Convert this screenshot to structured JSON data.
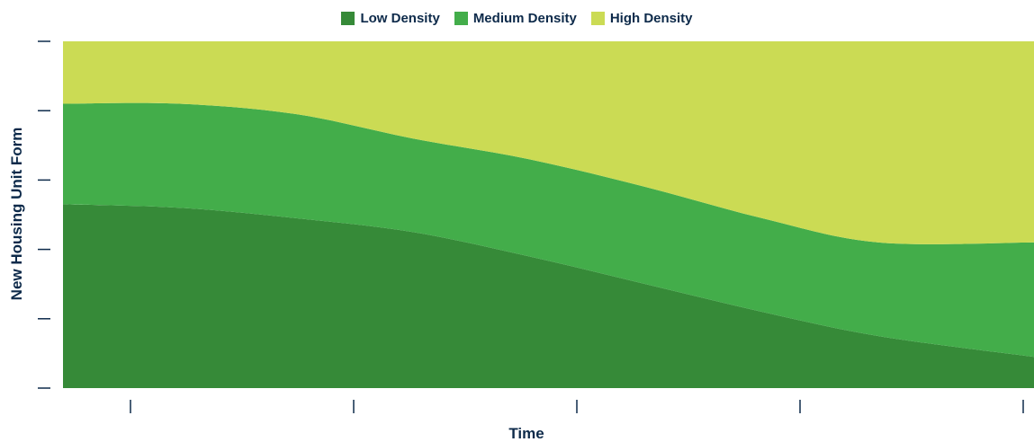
{
  "chart_data": {
    "type": "area",
    "stacked": true,
    "title": "",
    "xlabel": "Time",
    "ylabel": "New Housing Unit Form",
    "x": [
      0,
      0.12,
      0.24,
      0.36,
      0.48,
      0.6,
      0.72,
      0.84,
      1.0
    ],
    "xlim": [
      0,
      1
    ],
    "ylim": [
      0,
      1
    ],
    "x_tick_count": 5,
    "y_tick_count": 6,
    "x_tick_labels": [],
    "y_tick_labels": [],
    "grid": false,
    "legend_position": "top-center",
    "series": [
      {
        "name": "Low Density",
        "color": "#368a38",
        "values": [
          0.53,
          0.52,
          0.49,
          0.45,
          0.38,
          0.3,
          0.22,
          0.15,
          0.09
        ]
      },
      {
        "name": "Medium Density",
        "color": "#43ad4a",
        "values": [
          0.29,
          0.3,
          0.3,
          0.27,
          0.28,
          0.28,
          0.27,
          0.27,
          0.33
        ]
      },
      {
        "name": "High Density",
        "color": "#cbdb54",
        "values": [
          0.18,
          0.18,
          0.21,
          0.28,
          0.34,
          0.42,
          0.51,
          0.58,
          0.58
        ]
      }
    ]
  }
}
